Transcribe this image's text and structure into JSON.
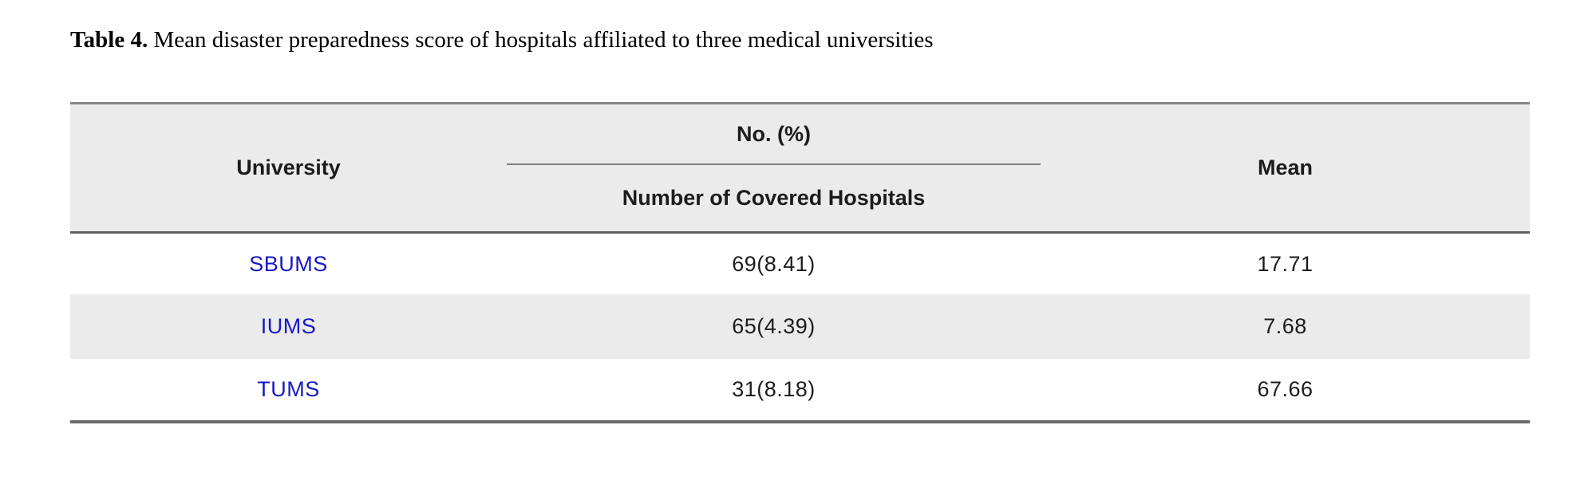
{
  "caption": {
    "label": "Table 4.",
    "text": " Mean disaster preparedness score of hospitals affiliated to three medical universities"
  },
  "table": {
    "header": {
      "university": "University",
      "group": "No. (%)",
      "group_sub": "Number of Covered Hospitals",
      "mean": "Mean"
    },
    "rows": [
      {
        "university": "SBUMS",
        "covered": "69(8.41)",
        "mean": "17.71"
      },
      {
        "university": "IUMS",
        "covered": "65(4.39)",
        "mean": "7.68"
      },
      {
        "university": "TUMS",
        "covered": "31(8.18)",
        "mean": "67.66"
      }
    ],
    "colors": {
      "header_bg": "#ebebeb",
      "alt_row_bg": "#ebebeb",
      "border_gray": "#6a6a6a",
      "divider_gray": "#7f7f7f",
      "university_blue": "#1717c9",
      "text": "#1c1c1c"
    }
  }
}
